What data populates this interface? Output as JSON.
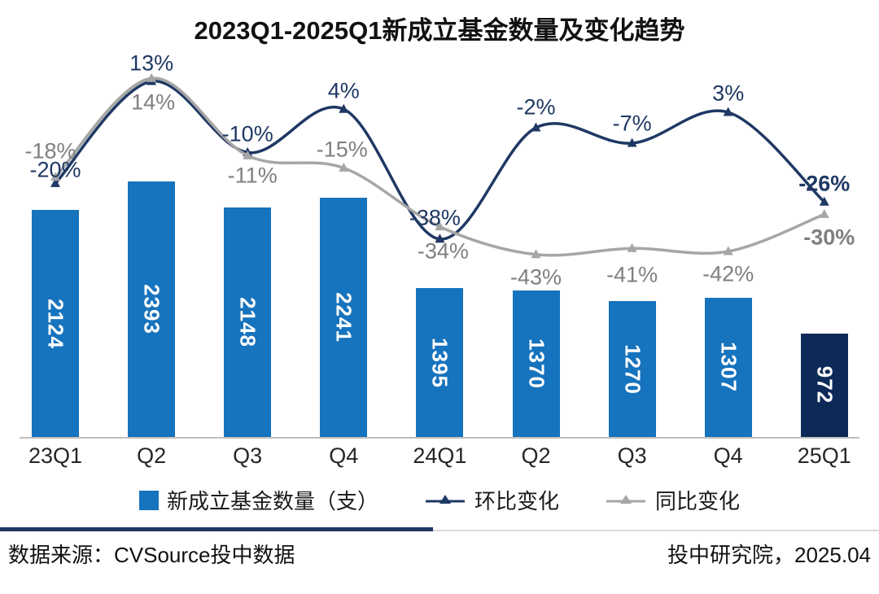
{
  "chart_data": {
    "type": "bar",
    "subtype": "bar-with-lines",
    "title": "2023Q1-2025Q1新成立基金数量及变化趋势",
    "categories": [
      "23Q1",
      "Q2",
      "Q3",
      "Q4",
      "24Q1",
      "Q2",
      "Q3",
      "Q4",
      "25Q1"
    ],
    "bar_series": {
      "name": "新成立基金数量（支）",
      "values": [
        2124,
        2393,
        2148,
        2241,
        1395,
        1370,
        1270,
        1307,
        972
      ]
    },
    "line_series": [
      {
        "name": "环比变化",
        "values_pct": [
          -20,
          13,
          -10,
          4,
          -38,
          -2,
          -7,
          3,
          -26
        ],
        "labels": [
          "-20%",
          "13%",
          "-10%",
          "4%",
          "-38%",
          "-2%",
          "-7%",
          "3%",
          "-26%"
        ],
        "line_color": "#1F3864",
        "label_color": "#1F3864"
      },
      {
        "name": "同比变化",
        "values_pct": [
          -18,
          14,
          -11,
          -15,
          -34,
          -43,
          -41,
          -42,
          -30
        ],
        "labels": [
          "-18%",
          "14%",
          "-11%",
          "-15%",
          "-34%",
          "-43%",
          "-41%",
          "-42%",
          "-30%"
        ],
        "line_color": "#A6A6A6",
        "label_color": "#7F7F7F"
      }
    ],
    "colors": {
      "bar": "#1673BE",
      "bar_highlight": "#0D2957",
      "axis_line": "#BFBFBF",
      "separator_accent": "#1F3864"
    },
    "highlight_last_bar": true,
    "legend_position": "bottom",
    "grid": false,
    "xlabel": "",
    "ylabel": ""
  },
  "footer": {
    "source": "数据来源：CVSource投中数据",
    "publisher": "投中研究院，2025.04"
  }
}
